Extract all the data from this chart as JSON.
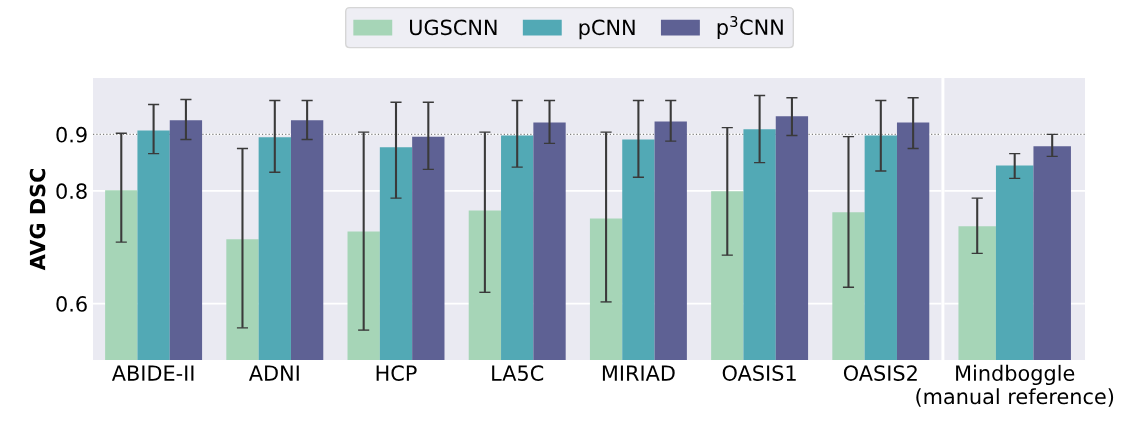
{
  "chart_data": [
    {
      "type": "bar",
      "ylabel": "AVG DSC",
      "categories": [
        "ABIDE-II",
        "ADNI",
        "HCP",
        "LA5C",
        "MIRIAD",
        "OASIS1",
        "OASIS2"
      ],
      "ylim": [
        0.5,
        1.0
      ],
      "yticks": [
        0.6,
        0.8,
        0.9
      ],
      "grid": "y",
      "legend": "top",
      "ref_lines": [
        {
          "axis": "y",
          "value": 0.9,
          "color": "#808080",
          "line_style": "dotted"
        }
      ],
      "series": [
        {
          "name": "UGSCNN",
          "color": "#a6d5b7",
          "values": [
            0.801,
            0.714,
            0.728,
            0.765,
            0.751,
            0.799,
            0.762
          ],
          "errors": [
            [
              0.709,
              0.902
            ],
            [
              0.557,
              0.875
            ],
            [
              0.553,
              0.904
            ],
            [
              0.62,
              0.904
            ],
            [
              0.603,
              0.904
            ],
            [
              0.686,
              0.912
            ],
            [
              0.629,
              0.896
            ]
          ]
        },
        {
          "name": "pCNN",
          "color": "#52a9b5",
          "values": [
            0.907,
            0.895,
            0.877,
            0.898,
            0.891,
            0.909,
            0.898
          ],
          "errors": [
            [
              0.866,
              0.953
            ],
            [
              0.833,
              0.96
            ],
            [
              0.787,
              0.957
            ],
            [
              0.842,
              0.96
            ],
            [
              0.824,
              0.96
            ],
            [
              0.85,
              0.969
            ],
            [
              0.835,
              0.96
            ]
          ]
        },
        {
          "name": "p$^{3}$CNN",
          "color": "#5e6194",
          "values": [
            0.925,
            0.925,
            0.896,
            0.921,
            0.923,
            0.932,
            0.921
          ],
          "errors": [
            [
              0.891,
              0.962
            ],
            [
              0.891,
              0.96
            ],
            [
              0.838,
              0.957
            ],
            [
              0.884,
              0.96
            ],
            [
              0.888,
              0.96
            ],
            [
              0.898,
              0.965
            ],
            [
              0.875,
              0.965
            ]
          ]
        }
      ]
    },
    {
      "type": "bar",
      "categories": [
        "Mindboggle\n(manual reference)"
      ],
      "ylim": [
        0.5,
        1.0
      ],
      "yticks": [
        0.6,
        0.8,
        0.9
      ],
      "tick_labels": "x",
      "grid": "y",
      "ref_lines": [
        {
          "axis": "y",
          "value": 0.9,
          "color": "#808080",
          "line_style": "dotted"
        }
      ],
      "series": [
        {
          "color": "#a6d5b7",
          "values": [
            0.737
          ],
          "errors": [
            [
              0.689,
              0.787
            ]
          ]
        },
        {
          "color": "#52a9b5",
          "values": [
            0.845
          ],
          "errors": [
            [
              0.822,
              0.866
            ]
          ]
        },
        {
          "color": "#5e6194",
          "values": [
            0.879
          ],
          "errors": [
            [
              0.861,
              0.9
            ]
          ]
        }
      ]
    }
  ]
}
